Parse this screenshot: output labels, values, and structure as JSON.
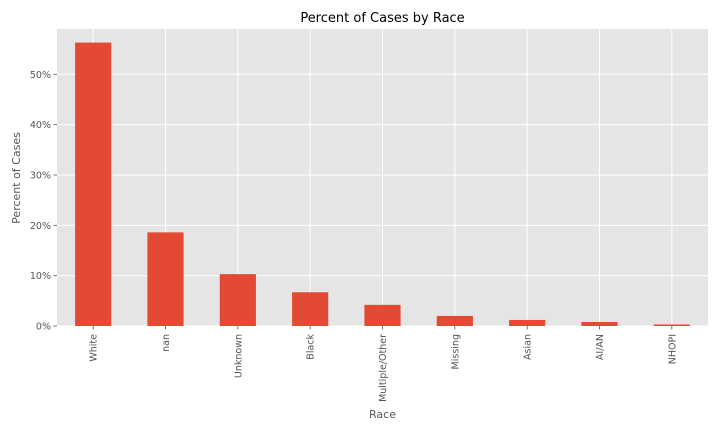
{
  "chart_data": {
    "type": "bar",
    "title": "Percent of Cases by Race",
    "xlabel": "Race",
    "ylabel": "Percent of Cases",
    "categories": [
      "White",
      "nan",
      "Unknown",
      "Black",
      "Multiple/Other",
      "Missing",
      "Asian",
      "AI/AN",
      "NHOPI"
    ],
    "values": [
      56.3,
      18.6,
      10.3,
      6.7,
      4.2,
      2.0,
      1.2,
      0.8,
      0.3
    ],
    "ylim": [
      0,
      59
    ],
    "yticks": [
      0,
      10,
      20,
      30,
      40,
      50
    ],
    "ytick_labels": [
      "0%",
      "10%",
      "20%",
      "30%",
      "40%",
      "50%"
    ],
    "grid": true,
    "legend": "none",
    "colors": {
      "bar": "#E24A33",
      "plot_background": "#E5E5E5",
      "grid": "#FFFFFF",
      "text": "#555555",
      "title": "#000000"
    }
  }
}
